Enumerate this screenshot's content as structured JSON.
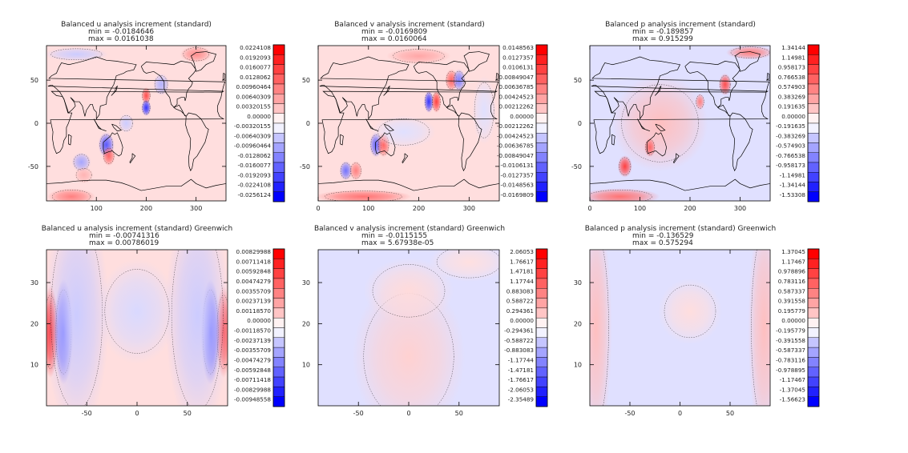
{
  "colors": {
    "max_positive": "#ff0000",
    "max_negative": "#0000ff",
    "neutral": "#ffffff",
    "coastline": "#000000",
    "zero_contour": "#000000"
  },
  "chart_data": [
    {
      "type": "heatmap",
      "panel": "top-left",
      "field": "u",
      "title": "Balanced u analysis increment (standard)",
      "min_text": "min =    -0.0184646",
      "max_text": "max =      0.0161038",
      "x_ticks": [
        "100",
        "200",
        "300"
      ],
      "x_tick_values": [
        100,
        200,
        300
      ],
      "y_ticks": [
        "50",
        "0",
        "-50"
      ],
      "y_tick_values": [
        50,
        0,
        -50
      ],
      "xlim": [
        0,
        360
      ],
      "ylim": [
        -90,
        90
      ],
      "coastlines": true,
      "colorbar_labels": [
        "0.0224108",
        "0.0192093",
        "0.0160077",
        "0.0128062",
        "0.00960464",
        "0.00640309",
        "0.00320155",
        "0.00000",
        "-0.00320155",
        "-0.00640309",
        "-0.00960464",
        "-0.0128062",
        "-0.0160077",
        "-0.0192093",
        "-0.0224108",
        "-0.0256124"
      ],
      "background": "positive",
      "blobs": [
        {
          "x": 200,
          "y": 32,
          "sx": 6,
          "sy": 6,
          "v": 0.7
        },
        {
          "x": 200,
          "y": 18,
          "sx": 6,
          "sy": 6,
          "v": -0.8
        },
        {
          "x": 120,
          "y": -25,
          "sx": 10,
          "sy": 9,
          "v": -0.65
        },
        {
          "x": 125,
          "y": -38,
          "sx": 8,
          "sy": 7,
          "v": 0.6
        },
        {
          "x": 70,
          "y": -45,
          "sx": 12,
          "sy": 7,
          "v": -0.35
        },
        {
          "x": 75,
          "y": -60,
          "sx": 12,
          "sy": 6,
          "v": 0.3
        },
        {
          "x": 50,
          "y": -85,
          "sx": 30,
          "sy": 6,
          "v": 0.5
        },
        {
          "x": 230,
          "y": 45,
          "sx": 10,
          "sy": 8,
          "v": -0.3
        },
        {
          "x": 300,
          "y": 80,
          "sx": 20,
          "sy": 6,
          "v": 0.45
        },
        {
          "x": 60,
          "y": 80,
          "sx": 40,
          "sy": 5,
          "v": -0.2
        },
        {
          "x": 160,
          "y": 0,
          "sx": 10,
          "sy": 7,
          "v": -0.2
        }
      ]
    },
    {
      "type": "heatmap",
      "panel": "top-middle",
      "field": "v",
      "title": "Balanced v analysis increment (standard)",
      "min_text": "min =    -0.0169809",
      "max_text": "max =      0.0160064",
      "x_ticks": [
        "0",
        "100",
        "200",
        "300"
      ],
      "x_tick_values": [
        0,
        100,
        200,
        300
      ],
      "y_ticks": [
        "50",
        "0",
        "-50"
      ],
      "y_tick_values": [
        50,
        0,
        -50
      ],
      "xlim": [
        0,
        360
      ],
      "ylim": [
        -90,
        90
      ],
      "coastlines": true,
      "colorbar_labels": [
        "0.0148563",
        "0.0127357",
        "0.0106131",
        "0.00849047",
        "0.00636785",
        "0.00424523",
        "0.00212262",
        "0.00000",
        "-0.00212262",
        "-0.00424523",
        "-0.00636785",
        "-0.00849047",
        "-0.0106131",
        "-0.0127357",
        "-0.0148563",
        "-0.0169809"
      ],
      "background": "positive",
      "blobs": [
        {
          "x": 220,
          "y": 25,
          "sx": 6,
          "sy": 8,
          "v": -0.8
        },
        {
          "x": 235,
          "y": 25,
          "sx": 6,
          "sy": 8,
          "v": 0.75
        },
        {
          "x": 265,
          "y": 50,
          "sx": 8,
          "sy": 8,
          "v": 0.6
        },
        {
          "x": 280,
          "y": 50,
          "sx": 8,
          "sy": 8,
          "v": -0.5
        },
        {
          "x": 115,
          "y": -25,
          "sx": 8,
          "sy": 9,
          "v": -0.6
        },
        {
          "x": 130,
          "y": -25,
          "sx": 8,
          "sy": 9,
          "v": 0.6
        },
        {
          "x": 55,
          "y": -55,
          "sx": 8,
          "sy": 7,
          "v": -0.55
        },
        {
          "x": 75,
          "y": -55,
          "sx": 8,
          "sy": 7,
          "v": 0.5
        },
        {
          "x": 90,
          "y": -85,
          "sx": 60,
          "sy": 5,
          "v": 0.55
        },
        {
          "x": 200,
          "y": 78,
          "sx": 40,
          "sy": 6,
          "v": 0.35
        },
        {
          "x": 170,
          "y": -10,
          "sx": 40,
          "sy": 12,
          "v": -0.12
        },
        {
          "x": 330,
          "y": 15,
          "sx": 15,
          "sy": 25,
          "v": -0.12
        }
      ]
    },
    {
      "type": "heatmap",
      "panel": "top-right",
      "field": "p",
      "title": "Balanced p analysis increment (standard)",
      "min_text": "min =    -0.189857",
      "max_text": "max =      0.915299",
      "x_ticks": [
        "0",
        "100",
        "200",
        "300"
      ],
      "x_tick_values": [
        0,
        100,
        200,
        300
      ],
      "y_ticks": [
        "50",
        "0",
        "-50"
      ],
      "y_tick_values": [
        50,
        0,
        -50
      ],
      "xlim": [
        0,
        360
      ],
      "ylim": [
        -90,
        90
      ],
      "coastlines": true,
      "colorbar_labels": [
        "1.34144",
        "1.14981",
        "0.958173",
        "0.766538",
        "0.574903",
        "0.383269",
        "0.191635",
        "0.00000",
        "-0.191635",
        "-0.383269",
        "-0.574903",
        "-0.766538",
        "-0.958173",
        "-1.14981",
        "-1.34144",
        "-1.53308"
      ],
      "background": "negative",
      "blobs": [
        {
          "x": 140,
          "y": 0,
          "sx": 60,
          "sy": 35,
          "v": 0.25
        },
        {
          "x": 270,
          "y": 45,
          "sx": 8,
          "sy": 8,
          "v": 0.7
        },
        {
          "x": 220,
          "y": 25,
          "sx": 6,
          "sy": 6,
          "v": 0.5
        },
        {
          "x": 120,
          "y": -28,
          "sx": 7,
          "sy": 7,
          "v": 0.6
        },
        {
          "x": 70,
          "y": -50,
          "sx": 9,
          "sy": 8,
          "v": 0.75
        },
        {
          "x": 60,
          "y": -85,
          "sx": 50,
          "sy": 6,
          "v": 0.55
        },
        {
          "x": 320,
          "y": 82,
          "sx": 30,
          "sy": 5,
          "v": 0.5
        }
      ]
    },
    {
      "type": "heatmap",
      "panel": "bottom-left",
      "field": "u",
      "title": "Balanced u analysis increment (standard) Greenwich",
      "min_text": "min =    -0.00741316",
      "max_text": "max =      0.00786019",
      "x_ticks": [
        "-50",
        "0",
        "50"
      ],
      "x_tick_values": [
        -50,
        0,
        50
      ],
      "y_ticks": [
        "30",
        "20",
        "10"
      ],
      "y_tick_values": [
        30,
        20,
        10
      ],
      "xlim": [
        -90,
        90
      ],
      "ylim": [
        0,
        38
      ],
      "coastlines": false,
      "colorbar_labels": [
        "0.00829988",
        "0.00711418",
        "0.00592848",
        "0.00474279",
        "0.00355709",
        "0.00237139",
        "0.00118570",
        "0.00000",
        "-0.00118570",
        "-0.00237139",
        "-0.00355709",
        "-0.00474279",
        "-0.00592848",
        "-0.00711418",
        "-0.00829988",
        "-0.00948558"
      ],
      "background": "positive",
      "blobs": [
        {
          "x": -86,
          "y": 18,
          "sx": 5,
          "sy": 7,
          "v": 0.85
        },
        {
          "x": -73,
          "y": 18,
          "sx": 6,
          "sy": 8,
          "v": -0.8
        },
        {
          "x": 86,
          "y": 18,
          "sx": 5,
          "sy": 7,
          "v": 0.7
        },
        {
          "x": 73,
          "y": 18,
          "sx": 6,
          "sy": 8,
          "v": -0.8
        },
        {
          "x": -60,
          "y": 22,
          "sx": 20,
          "sy": 18,
          "v": -0.2
        },
        {
          "x": 60,
          "y": 22,
          "sx": 20,
          "sy": 18,
          "v": -0.2
        },
        {
          "x": 0,
          "y": 23,
          "sx": 25,
          "sy": 8,
          "v": -0.15
        }
      ]
    },
    {
      "type": "heatmap",
      "panel": "bottom-middle",
      "field": "v",
      "title": "Balanced v analysis increment (standard) Greenwich",
      "min_text": "min =    -0.0115155",
      "max_text": "max =   5.67938e-05",
      "x_ticks": [
        "-50",
        "0",
        "50"
      ],
      "x_tick_values": [
        -50,
        0,
        50
      ],
      "y_ticks": [
        "30",
        "20",
        "10"
      ],
      "y_tick_values": [
        30,
        20,
        10
      ],
      "xlim": [
        -90,
        90
      ],
      "ylim": [
        0,
        38
      ],
      "coastlines": false,
      "colorbar_labels": [
        "2.06053",
        "1.76617",
        "1.47181",
        "1.17744",
        "0.883083",
        "0.588722",
        "0.294361",
        "0.00000",
        "-0.294361",
        "-0.588722",
        "-0.883083",
        "-1.17744",
        "-1.47181",
        "-1.76617",
        "-2.06053",
        "-2.35489"
      ],
      "background": "negative",
      "blobs": [
        {
          "x": 0,
          "y": 12,
          "sx": 35,
          "sy": 12,
          "v": 0.18
        },
        {
          "x": 0,
          "y": 28,
          "sx": 28,
          "sy": 5,
          "v": 0.14
        },
        {
          "x": 60,
          "y": 35,
          "sx": 25,
          "sy": 3,
          "v": 0.12
        }
      ]
    },
    {
      "type": "heatmap",
      "panel": "bottom-right",
      "field": "p",
      "title": "Balanced p analysis increment (standard) Greenwich",
      "min_text": "min =    -0.136529",
      "max_text": "max =      0.575294",
      "x_ticks": [
        "-50",
        "0",
        "50"
      ],
      "x_tick_values": [
        -50,
        0,
        50
      ],
      "y_ticks": [
        "30",
        "20",
        "10"
      ],
      "y_tick_values": [
        30,
        20,
        10
      ],
      "xlim": [
        -90,
        90
      ],
      "ylim": [
        0,
        38
      ],
      "coastlines": false,
      "colorbar_labels": [
        "1.37045",
        "1.17467",
        "0.978896",
        "0.783116",
        "0.587337",
        "0.391558",
        "0.195779",
        "0.00000",
        "-0.195779",
        "-0.391558",
        "-0.587337",
        "-0.783116",
        "-0.978895",
        "-1.17467",
        "-1.37045",
        "-1.56623"
      ],
      "background": "negative",
      "blobs": [
        {
          "x": -84,
          "y": 19,
          "sx": 10,
          "sy": 18,
          "v": 0.25
        },
        {
          "x": 84,
          "y": 19,
          "sx": 10,
          "sy": 18,
          "v": 0.25
        },
        {
          "x": 10,
          "y": 23,
          "sx": 20,
          "sy": 5,
          "v": 0.13
        }
      ]
    }
  ]
}
